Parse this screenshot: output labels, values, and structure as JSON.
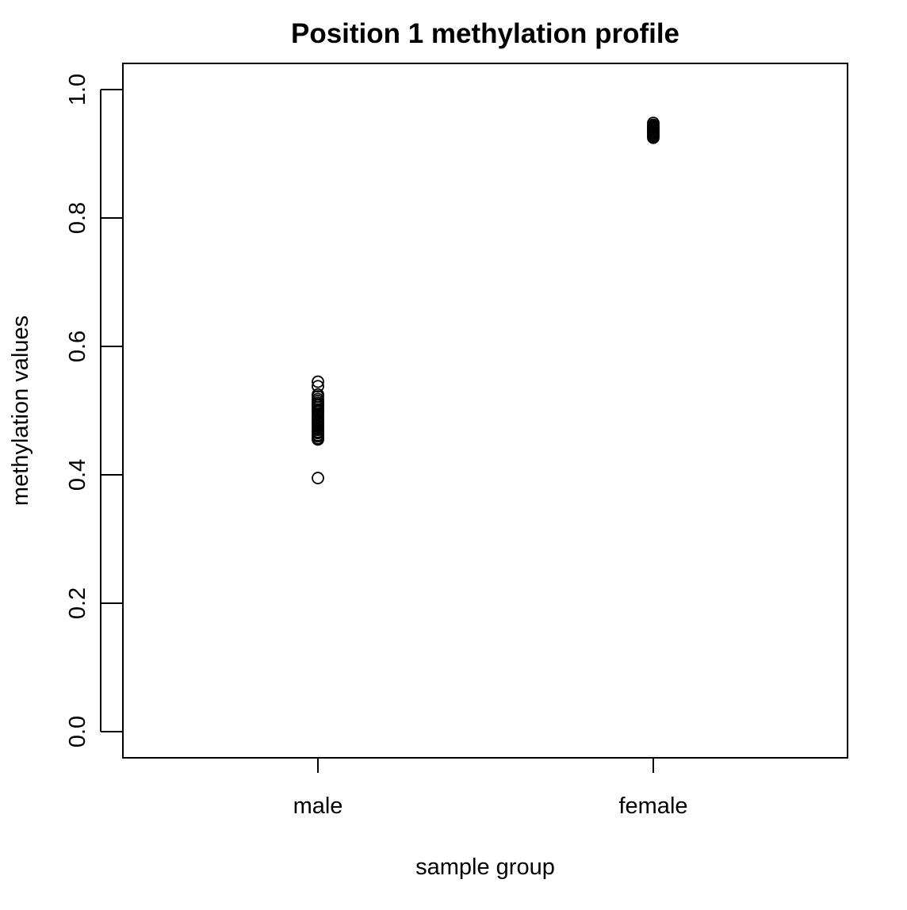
{
  "chart_data": {
    "type": "scatter",
    "title": "Position 1 methylation profile",
    "xlabel": "sample group",
    "ylabel": "methylation values",
    "categories": [
      "male",
      "female"
    ],
    "ylim": [
      0,
      1
    ],
    "y_ticks": [
      "0.0",
      "0.2",
      "0.4",
      "0.6",
      "0.8",
      "1.0"
    ],
    "grid": false,
    "legend": "none",
    "series": [
      {
        "category": "male",
        "values": [
          0.545,
          0.538,
          0.525,
          0.522,
          0.518,
          0.515,
          0.512,
          0.51,
          0.508,
          0.505,
          0.502,
          0.5,
          0.498,
          0.495,
          0.492,
          0.49,
          0.487,
          0.485,
          0.482,
          0.48,
          0.477,
          0.475,
          0.472,
          0.47,
          0.467,
          0.465,
          0.462,
          0.46,
          0.457,
          0.455,
          0.395
        ]
      },
      {
        "category": "female",
        "values": [
          0.948,
          0.945,
          0.943,
          0.941,
          0.939,
          0.937,
          0.935,
          0.933,
          0.931,
          0.929,
          0.927,
          0.925
        ]
      }
    ]
  }
}
